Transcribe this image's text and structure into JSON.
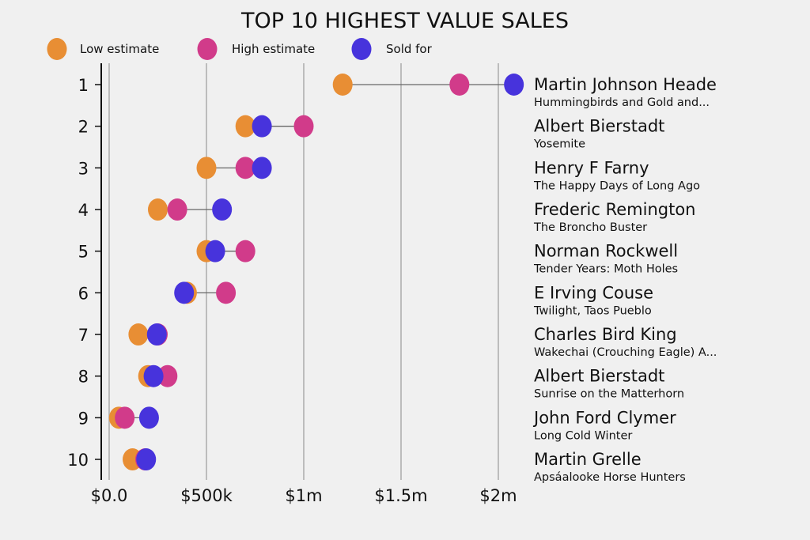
{
  "chart_data": {
    "type": "scatter",
    "subtype": "dumbbell",
    "title": "TOP 10 HIGHEST VALUE SALES",
    "xlabel": "",
    "ylabel": "",
    "xlim": [
      -40000,
      2100000
    ],
    "xticks": [
      0,
      500000,
      1000000,
      1500000,
      2000000
    ],
    "xtick_labels": [
      "$0.0",
      "$500k",
      "$1m",
      "$1.5m",
      "$2m"
    ],
    "grid": "vertical",
    "legend": {
      "placement": "top-left",
      "entries": [
        "Low estimate",
        "High estimate",
        "Sold for"
      ]
    },
    "colors": {
      "low": "#e88e34",
      "high": "#d13b8a",
      "sold": "#4733dc",
      "grid": "#b0b0b0",
      "connector": "#666666",
      "axis": "#111111"
    },
    "categories": [
      "1",
      "2",
      "3",
      "4",
      "5",
      "6",
      "7",
      "8",
      "9",
      "10"
    ],
    "labels": [
      {
        "artist": "Martin Johnson Heade",
        "work": "Hummingbirds and Gold and..."
      },
      {
        "artist": "Albert Bierstadt",
        "work": "Yosemite"
      },
      {
        "artist": "Henry F Farny",
        "work": "The Happy Days of Long Ago"
      },
      {
        "artist": "Frederic Remington",
        "work": "The Broncho Buster"
      },
      {
        "artist": "Norman Rockwell",
        "work": "Tender Years: Moth Holes"
      },
      {
        "artist": "E Irving Couse",
        "work": "Twilight, Taos Pueblo"
      },
      {
        "artist": "Charles Bird King",
        "work": "Wakechai (Crouching Eagle) A..."
      },
      {
        "artist": "Albert Bierstadt",
        "work": "Sunrise on the Matterhorn"
      },
      {
        "artist": "John Ford Clymer",
        "work": "Long Cold Winter"
      },
      {
        "artist": "Martin Grelle",
        "work": "Apsáalooke Horse Hunters"
      }
    ],
    "series": [
      {
        "name": "Low estimate",
        "key": "low",
        "values": [
          1200000,
          700000,
          500000,
          250000,
          500000,
          400000,
          150000,
          200000,
          50000,
          120000
        ]
      },
      {
        "name": "High estimate",
        "key": "high",
        "values": [
          1800000,
          1000000,
          700000,
          350000,
          700000,
          600000,
          250000,
          300000,
          80000,
          185000
        ]
      },
      {
        "name": "Sold for",
        "key": "sold",
        "values": [
          2080000,
          785000,
          785000,
          580000,
          545000,
          385000,
          245000,
          228000,
          205000,
          190000
        ]
      }
    ]
  }
}
